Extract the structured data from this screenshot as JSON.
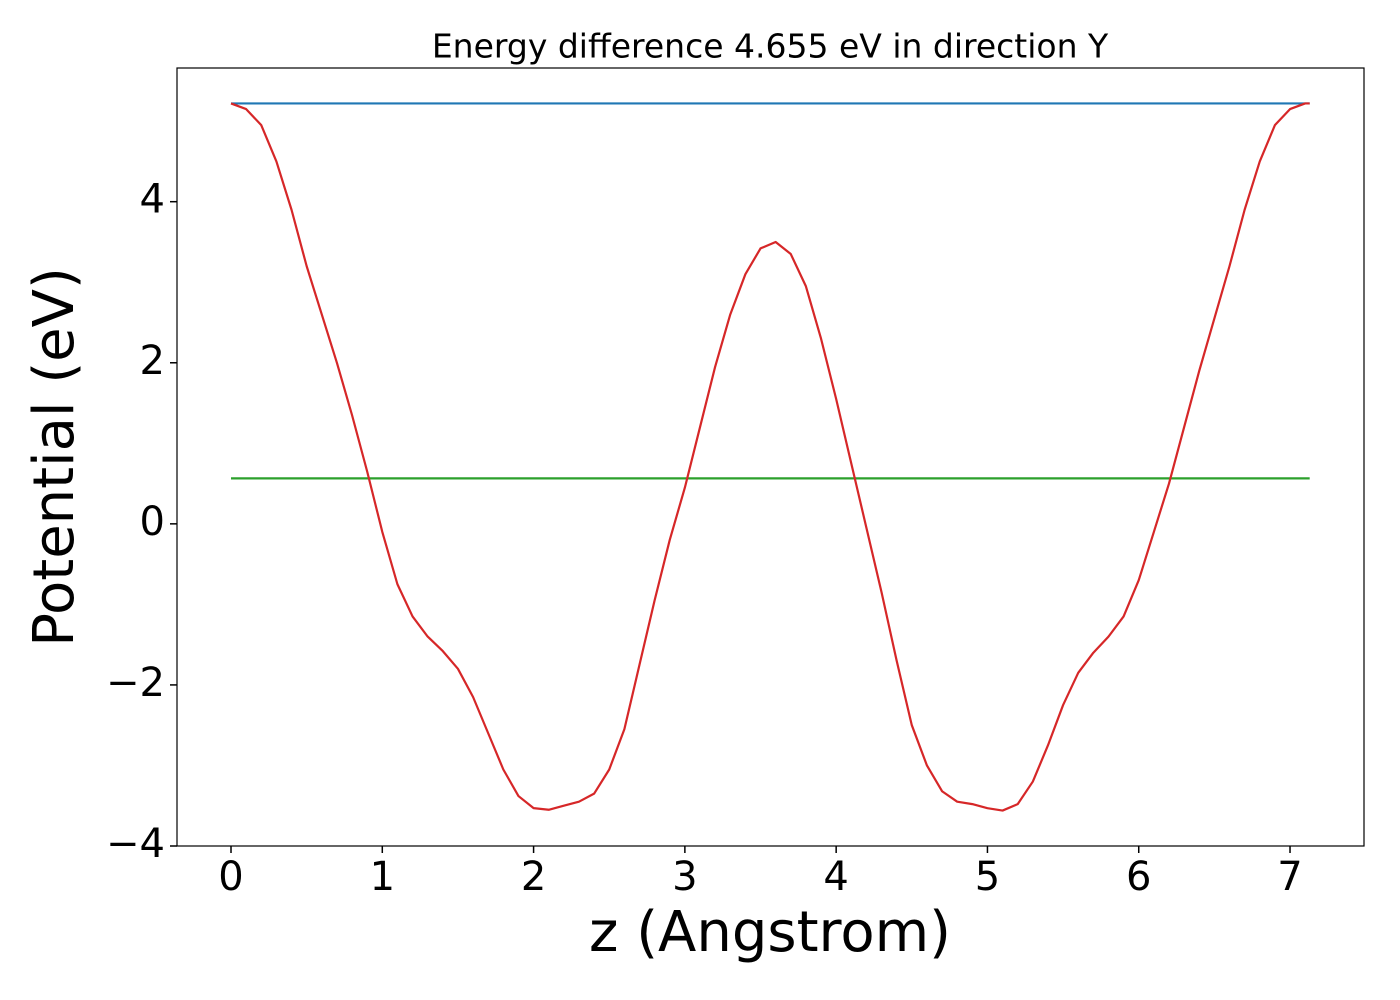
{
  "chart_data": {
    "type": "line",
    "title": "Energy difference 4.655 eV in direction Y",
    "xlabel": "z (Angstrom)",
    "ylabel": "Potential (eV)",
    "xlim": [
      -0.357,
      7.489
    ],
    "ylim": [
      -4.0,
      5.66
    ],
    "xticks": [
      0,
      1,
      2,
      3,
      4,
      5,
      6,
      7
    ],
    "yticks": [
      {
        "value": -4,
        "label": "−4"
      },
      {
        "value": -2,
        "label": "−2"
      },
      0,
      2,
      4
    ],
    "grid": false,
    "series": [
      {
        "color": "#1f77b4",
        "x": [
          0,
          7.13
        ],
        "values": [
          5.22,
          5.22
        ]
      },
      {
        "color": "#2ca02c",
        "x": [
          0,
          7.13
        ],
        "values": [
          0.565,
          0.565
        ]
      },
      {
        "color": "#d62728",
        "x": [
          0,
          0.1,
          0.2,
          0.3,
          0.4,
          0.5,
          0.6,
          0.7,
          0.8,
          0.9,
          1.0,
          1.1,
          1.2,
          1.3,
          1.4,
          1.5,
          1.6,
          1.7,
          1.8,
          1.9,
          2.0,
          2.1,
          2.2,
          2.3,
          2.4,
          2.5,
          2.6,
          2.7,
          2.8,
          2.9,
          3.0,
          3.1,
          3.2,
          3.3,
          3.4,
          3.5,
          3.6,
          3.7,
          3.8,
          3.9,
          4.0,
          4.1,
          4.2,
          4.3,
          4.4,
          4.5,
          4.6,
          4.7,
          4.8,
          4.9,
          5.0,
          5.1,
          5.2,
          5.3,
          5.4,
          5.5,
          5.6,
          5.7,
          5.8,
          5.9,
          6.0,
          6.1,
          6.2,
          6.3,
          6.4,
          6.5,
          6.6,
          6.7,
          6.8,
          6.9,
          7.0,
          7.1,
          7.13
        ],
        "values": [
          5.22,
          5.15,
          4.95,
          4.5,
          3.9,
          3.2,
          2.6,
          2.0,
          1.35,
          0.65,
          -0.1,
          -0.75,
          -1.15,
          -1.4,
          -1.58,
          -1.8,
          -2.15,
          -2.6,
          -3.05,
          -3.38,
          -3.53,
          -3.55,
          -3.5,
          -3.45,
          -3.35,
          -3.05,
          -2.55,
          -1.75,
          -0.95,
          -0.2,
          0.45,
          1.2,
          1.95,
          2.6,
          3.1,
          3.42,
          3.5,
          3.35,
          2.95,
          2.3,
          1.55,
          0.75,
          -0.05,
          -0.85,
          -1.7,
          -2.5,
          -3.0,
          -3.32,
          -3.45,
          -3.48,
          -3.53,
          -3.56,
          -3.48,
          -3.2,
          -2.75,
          -2.25,
          -1.85,
          -1.6,
          -1.4,
          -1.15,
          -0.7,
          -0.1,
          0.5,
          1.2,
          1.9,
          2.55,
          3.2,
          3.9,
          4.5,
          4.95,
          5.15,
          5.22,
          5.22
        ]
      }
    ]
  }
}
